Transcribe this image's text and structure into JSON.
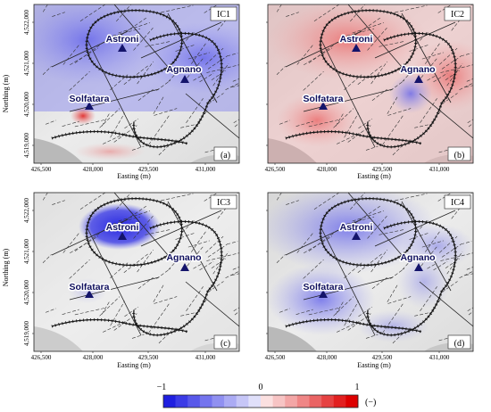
{
  "panels": [
    {
      "id": "IC1",
      "letter": "(a)",
      "mode": "ic1",
      "sites": [
        {
          "name": "Astroni"
        },
        {
          "name": "Agnano"
        },
        {
          "name": "Solfatara"
        }
      ]
    },
    {
      "id": "IC2",
      "letter": "(b)",
      "mode": "ic2",
      "sites": [
        {
          "name": "Astroni"
        },
        {
          "name": "Agnano"
        },
        {
          "name": "Solfatara"
        }
      ]
    },
    {
      "id": "IC3",
      "letter": "(c)",
      "mode": "ic3",
      "sites": [
        {
          "name": "Astroni"
        },
        {
          "name": "Agnano"
        },
        {
          "name": "Solfatara"
        }
      ]
    },
    {
      "id": "IC4",
      "letter": "(d)",
      "mode": "ic4",
      "sites": [
        {
          "name": "Astroni"
        },
        {
          "name": "Agnano"
        },
        {
          "name": "Solfatara"
        }
      ]
    }
  ],
  "axes": {
    "ylabel": "Northing (m)",
    "xlabel": "Easting (m)",
    "yticks": [
      "4,522,000",
      "4,521,000",
      "4,520,000",
      "4,519,000"
    ],
    "xticks": [
      "426,500",
      "428,000",
      "429,500",
      "431,000"
    ]
  },
  "colorbar": {
    "min_label": "−1",
    "mid_label": "0",
    "max_label": "1",
    "unit": "(−)",
    "colors": [
      "#1f1fe0",
      "#3b3be6",
      "#5858ea",
      "#7474ee",
      "#9090f1",
      "#ababf4",
      "#c6c6f7",
      "#e0e0fa",
      "#fbe0e0",
      "#f7c4c4",
      "#f3a6a6",
      "#ef8686",
      "#ea6464",
      "#e64242",
      "#e22020",
      "#dd0000"
    ]
  }
}
